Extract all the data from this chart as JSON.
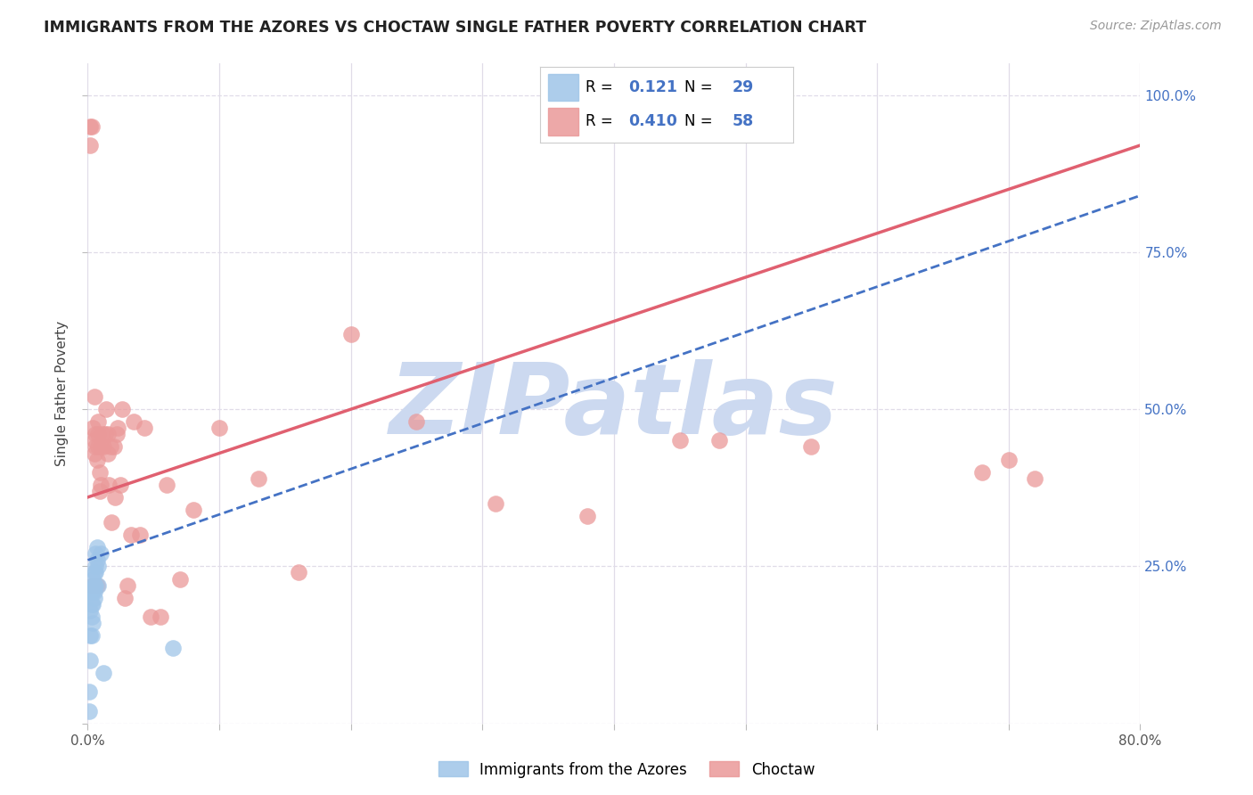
{
  "title": "IMMIGRANTS FROM THE AZORES VS CHOCTAW SINGLE FATHER POVERTY CORRELATION CHART",
  "source": "Source: ZipAtlas.com",
  "ylabel": "Single Father Poverty",
  "xlim": [
    0.0,
    0.8
  ],
  "ylim": [
    0.0,
    1.05
  ],
  "legend_label1": "Immigrants from the Azores",
  "legend_label2": "Choctaw",
  "blue_color": "#9fc5e8",
  "pink_color": "#ea9999",
  "blue_line_color": "#4472c4",
  "pink_line_color": "#e06070",
  "text_color_blue": "#4472c4",
  "watermark": "ZIPatlas",
  "watermark_color": "#ccd9f0",
  "background_color": "#ffffff",
  "grid_color": "#e0dce8",
  "pink_line_x0": 0.0,
  "pink_line_y0": 0.36,
  "pink_line_x1": 0.8,
  "pink_line_y1": 0.92,
  "blue_line_x0": 0.0,
  "blue_line_y0": 0.26,
  "blue_line_x1": 0.8,
  "blue_line_y1": 0.84,
  "blue_points_x": [
    0.001,
    0.001,
    0.002,
    0.002,
    0.002,
    0.003,
    0.003,
    0.003,
    0.003,
    0.004,
    0.004,
    0.004,
    0.004,
    0.004,
    0.005,
    0.005,
    0.005,
    0.005,
    0.006,
    0.006,
    0.006,
    0.006,
    0.007,
    0.007,
    0.008,
    0.008,
    0.01,
    0.012,
    0.065
  ],
  "blue_points_y": [
    0.02,
    0.05,
    0.1,
    0.14,
    0.18,
    0.14,
    0.17,
    0.19,
    0.21,
    0.16,
    0.19,
    0.21,
    0.22,
    0.23,
    0.2,
    0.21,
    0.22,
    0.24,
    0.22,
    0.24,
    0.25,
    0.27,
    0.26,
    0.28,
    0.22,
    0.25,
    0.27,
    0.08,
    0.12
  ],
  "pink_points_x": [
    0.002,
    0.002,
    0.003,
    0.004,
    0.004,
    0.005,
    0.005,
    0.005,
    0.006,
    0.006,
    0.007,
    0.007,
    0.008,
    0.008,
    0.008,
    0.009,
    0.009,
    0.01,
    0.01,
    0.011,
    0.012,
    0.013,
    0.014,
    0.015,
    0.015,
    0.016,
    0.017,
    0.018,
    0.02,
    0.021,
    0.022,
    0.023,
    0.025,
    0.026,
    0.028,
    0.03,
    0.033,
    0.035,
    0.04,
    0.043,
    0.048,
    0.055,
    0.06,
    0.07,
    0.08,
    0.1,
    0.13,
    0.16,
    0.2,
    0.25,
    0.31,
    0.38,
    0.45,
    0.48,
    0.55,
    0.68,
    0.7,
    0.72
  ],
  "pink_points_y": [
    0.95,
    0.92,
    0.95,
    0.22,
    0.47,
    0.52,
    0.45,
    0.43,
    0.44,
    0.46,
    0.22,
    0.42,
    0.44,
    0.46,
    0.48,
    0.37,
    0.4,
    0.38,
    0.44,
    0.46,
    0.44,
    0.46,
    0.5,
    0.46,
    0.43,
    0.38,
    0.44,
    0.32,
    0.44,
    0.36,
    0.46,
    0.47,
    0.38,
    0.5,
    0.2,
    0.22,
    0.3,
    0.48,
    0.3,
    0.47,
    0.17,
    0.17,
    0.38,
    0.23,
    0.34,
    0.47,
    0.39,
    0.24,
    0.62,
    0.48,
    0.35,
    0.33,
    0.45,
    0.45,
    0.44,
    0.4,
    0.42,
    0.39
  ]
}
